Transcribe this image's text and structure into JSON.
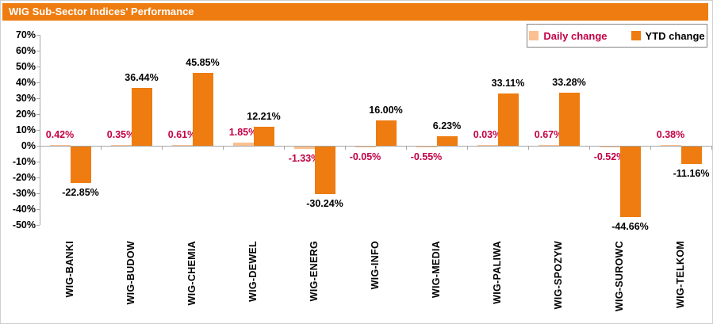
{
  "title": "WIG Sub-Sector Indices' Performance",
  "colors": {
    "title_bg": "#ee7c10",
    "daily_bar": "#fac090",
    "ytd_bar": "#ee7c10",
    "daily_label_text": "#c30045",
    "ytd_label_text": "#000000",
    "axis": "#a6a6a6"
  },
  "chart_data": {
    "type": "bar",
    "title": "WIG Sub-Sector Indices' Performance",
    "categories": [
      "WIG-BANKI",
      "WIG-BUDOW",
      "WIG-CHEMIA",
      "WIG-DEWEL",
      "WIG-ENERG",
      "WIG-INFO",
      "WIG-MEDIA",
      "WIG-PALIWA",
      "WIG-SPOZYW",
      "WIG-SUROWC",
      "WIG-TELKOM"
    ],
    "series": [
      {
        "name": "Daily change",
        "color": "#fac090",
        "label_color": "#c30045",
        "values": [
          0.42,
          0.35,
          0.61,
          1.85,
          -1.33,
          -0.05,
          -0.55,
          0.03,
          0.67,
          -0.52,
          0.38
        ]
      },
      {
        "name": "YTD change",
        "color": "#ee7c10",
        "label_color": "#000000",
        "values": [
          -22.85,
          36.44,
          45.85,
          12.21,
          -30.24,
          16.0,
          6.23,
          33.11,
          33.28,
          -44.66,
          -11.16
        ]
      }
    ],
    "data_label_format": "0.00%",
    "xlabel": "",
    "ylabel": "",
    "ylim": [
      -50,
      70
    ],
    "y_step": 10,
    "y_tick_suffix": "%",
    "grid": false,
    "legend_position": "top-right"
  }
}
